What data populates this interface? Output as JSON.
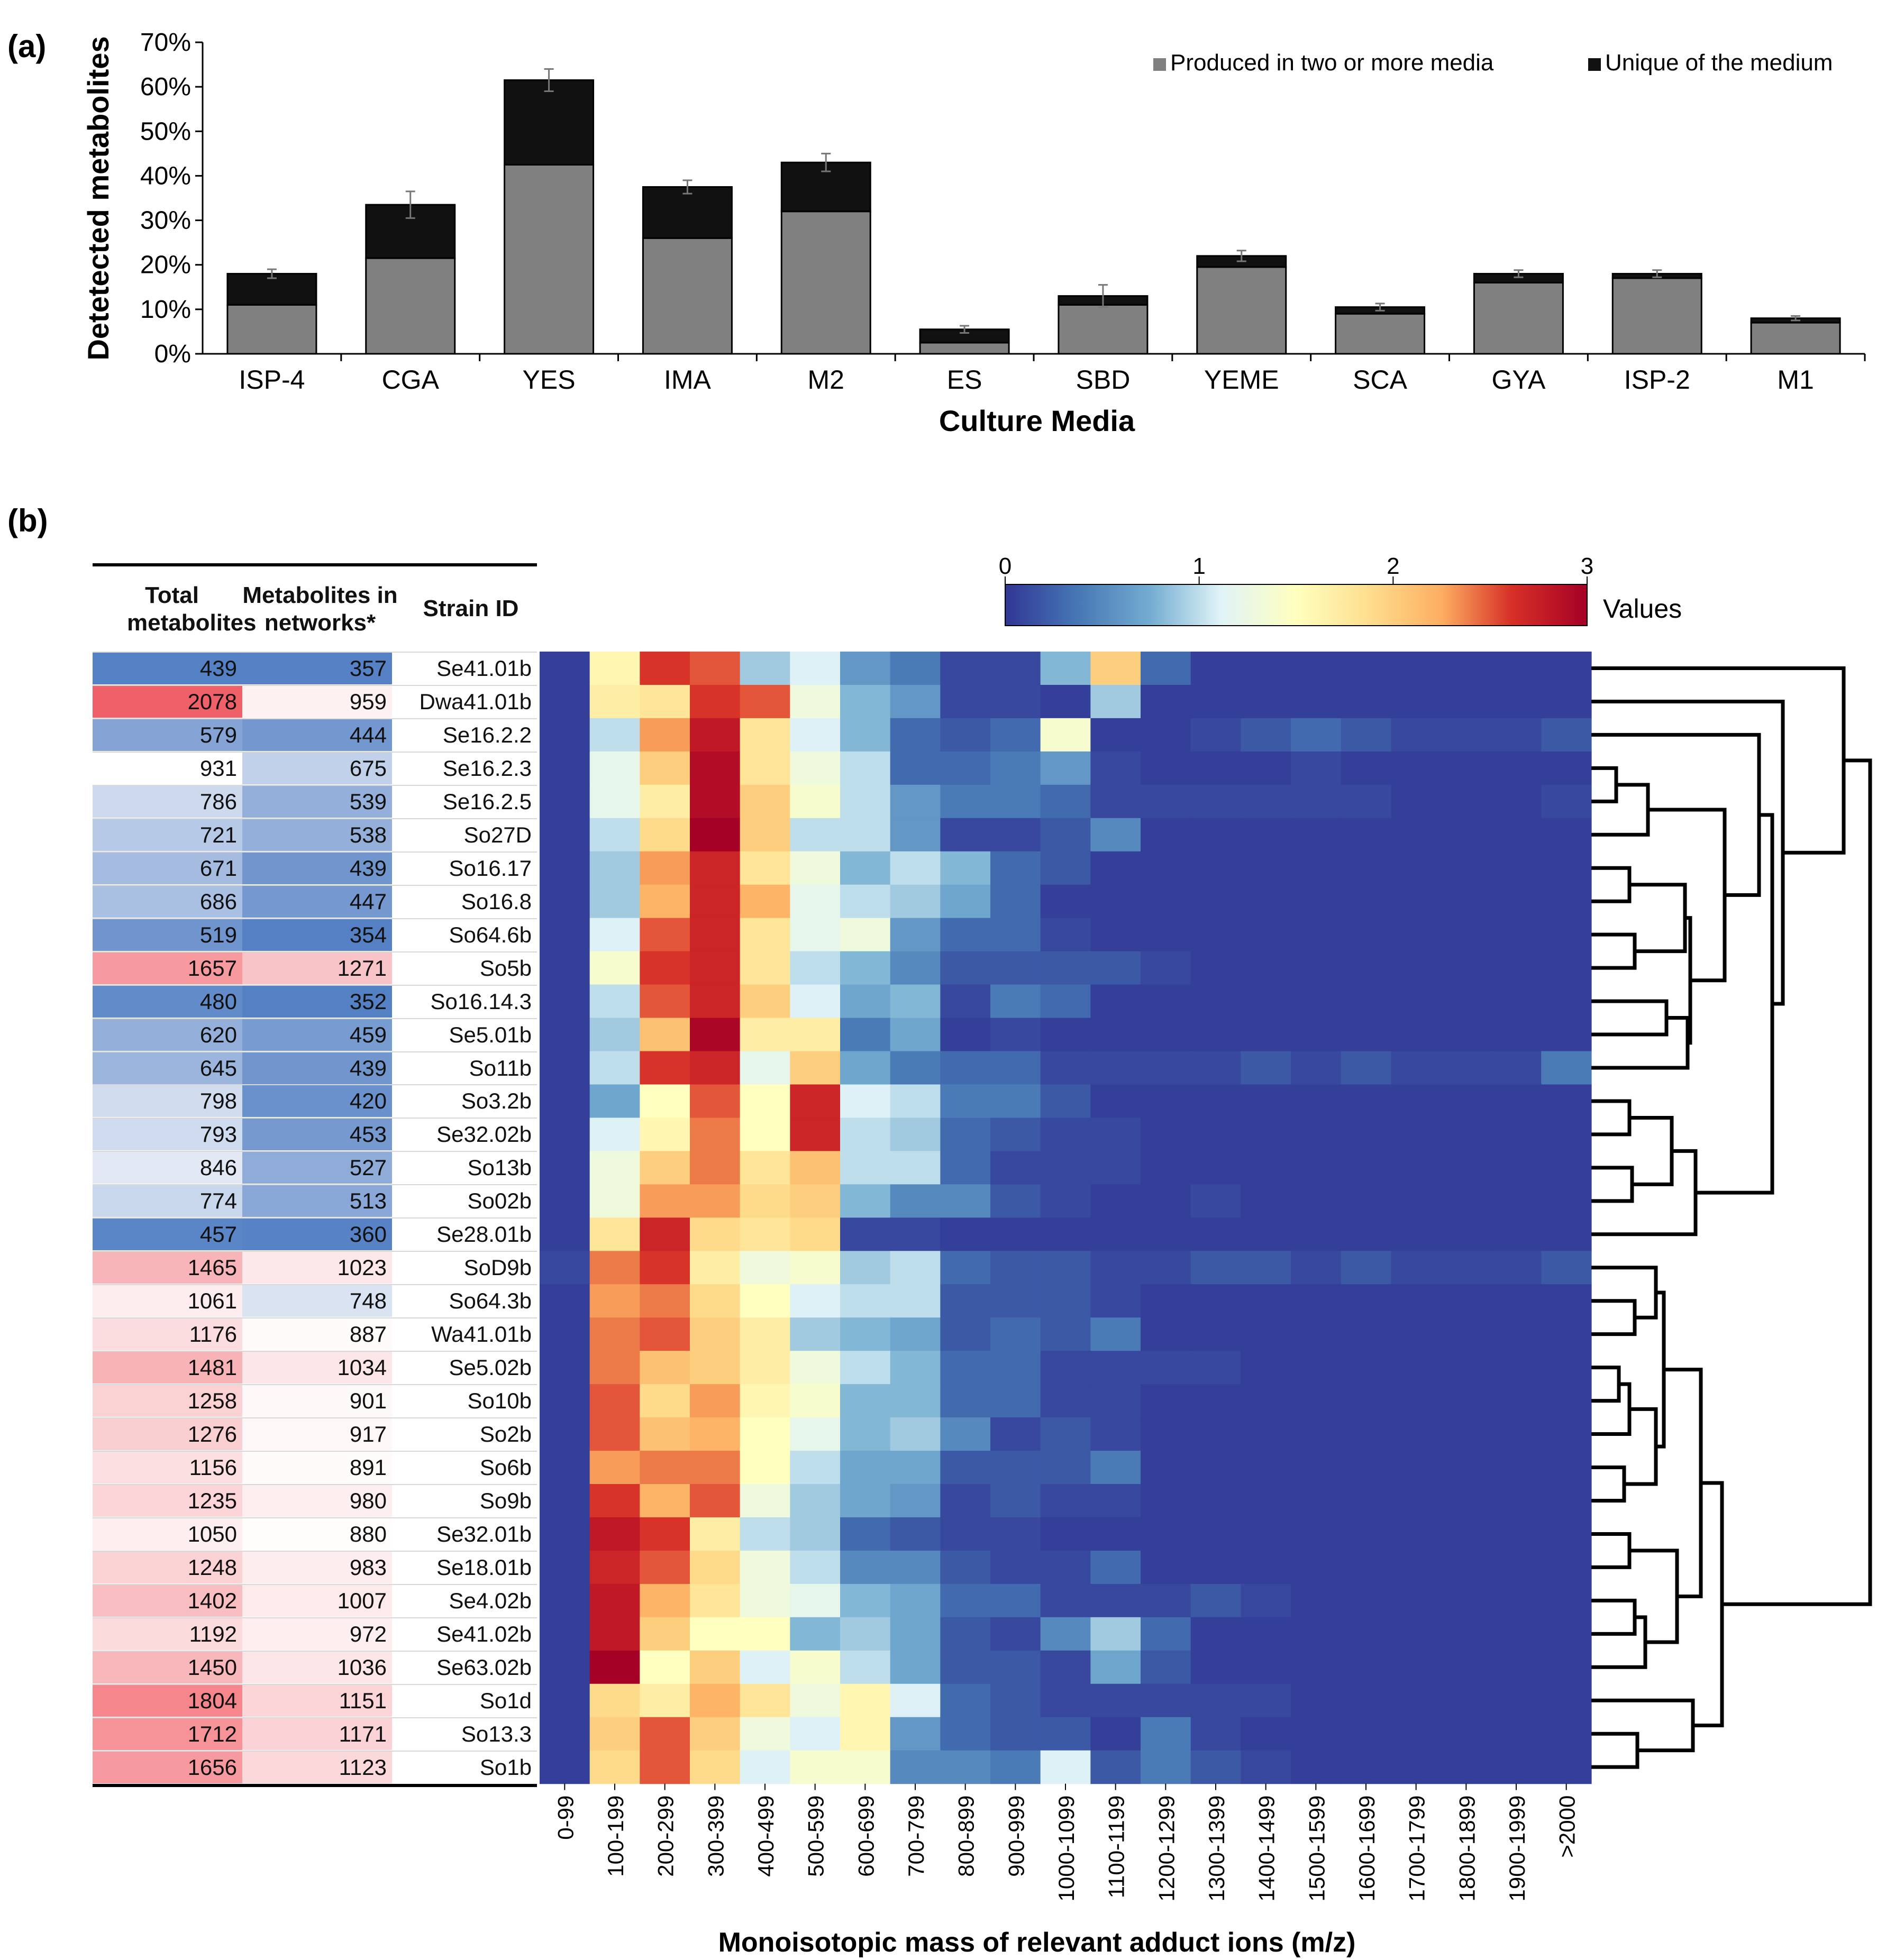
{
  "panel_a_label": "(a)",
  "panel_b_label": "(b)",
  "colors": {
    "produced": "#808080",
    "unique": "#111111",
    "heatmap_low": "#313695",
    "heatmap_high": "#a50026"
  },
  "chart_data": [
    {
      "type": "bar",
      "stacked": true,
      "categories": [
        "ISP-4",
        "CGA",
        "YES",
        "IMA",
        "M2",
        "ES",
        "SBD",
        "YEME",
        "SCA",
        "GYA",
        "ISP-2",
        "M1"
      ],
      "series": [
        {
          "name": "Produced in two or more media",
          "values": [
            11,
            21.5,
            42.5,
            26,
            32,
            2.5,
            11,
            19.5,
            9,
            16,
            17,
            7
          ]
        },
        {
          "name": "Unique of the medium",
          "values": [
            7,
            12,
            19,
            11.5,
            11,
            3,
            2,
            2.5,
            1.5,
            2,
            1,
            1
          ]
        }
      ],
      "error_bars": [
        1,
        3,
        2.5,
        1.5,
        2,
        0.8,
        2.5,
        1.2,
        0.8,
        0.8,
        0.8,
        0.5
      ],
      "xlabel": "Culture Media",
      "ylabel": "Detetected metabolites",
      "ylim": [
        0,
        70
      ],
      "yticks": [
        "0%",
        "10%",
        "20%",
        "30%",
        "40%",
        "50%",
        "60%",
        "70%"
      ],
      "legend_placement": "top-right",
      "grid": false
    },
    {
      "type": "heatmap",
      "xlabel": "Monoisotopic mass of relevant adduct ions (m/z)",
      "x": [
        "0-99",
        "100-199",
        "200-299",
        "300-399",
        "400-499",
        "500-599",
        "600-699",
        "700-799",
        "800-899",
        "900-999",
        "1000-1099",
        "1100-1199",
        "1200-1299",
        "1300-1399",
        "1400-1499",
        "1500-1599",
        "1600-1699",
        "1700-1799",
        "1800-1899",
        "1900-1999",
        ">2000"
      ],
      "colorbar": {
        "label": "Values",
        "range": [
          0,
          3
        ],
        "ticks": [
          "0",
          "1",
          "2",
          "3"
        ]
      },
      "table_headers": {
        "total": "Total metabolites",
        "networks": "Metabolites in networks*",
        "strain": "Strain ID"
      },
      "rows": [
        {
          "strain": "Se41.01b",
          "total": 439,
          "networks": 357,
          "values": [
            0.05,
            1.6,
            2.6,
            2.5,
            0.9,
            1.1,
            0.6,
            0.4,
            0.1,
            0.1,
            0.8,
            2.0,
            0.3,
            0.05,
            0.05,
            0.05,
            0.05,
            0.05,
            0.05,
            0.05,
            0.05
          ]
        },
        {
          "strain": "Dwa41.01b",
          "total": 2078,
          "networks": 959,
          "values": [
            0.05,
            1.7,
            1.8,
            2.6,
            2.5,
            1.3,
            0.8,
            0.6,
            0.1,
            0.1,
            0.05,
            0.9,
            0.05,
            0.05,
            0.05,
            0.05,
            0.05,
            0.05,
            0.05,
            0.05,
            0.05
          ]
        },
        {
          "strain": "Se16.2.2",
          "total": 579,
          "networks": 444,
          "values": [
            0.05,
            1.0,
            2.3,
            2.8,
            1.8,
            1.1,
            0.8,
            0.3,
            0.2,
            0.3,
            1.4,
            0.05,
            0.05,
            0.1,
            0.2,
            0.3,
            0.2,
            0.1,
            0.1,
            0.1,
            0.2
          ]
        },
        {
          "strain": "Se16.2.3",
          "total": 931,
          "networks": 675,
          "values": [
            0.05,
            1.2,
            2.0,
            2.9,
            1.8,
            1.3,
            1.0,
            0.3,
            0.3,
            0.4,
            0.6,
            0.1,
            0.05,
            0.05,
            0.05,
            0.1,
            0.05,
            0.05,
            0.05,
            0.05,
            0.05
          ]
        },
        {
          "strain": "Se16.2.5",
          "total": 786,
          "networks": 539,
          "values": [
            0.05,
            1.2,
            1.7,
            2.9,
            2.0,
            1.4,
            1.0,
            0.6,
            0.4,
            0.4,
            0.3,
            0.1,
            0.1,
            0.1,
            0.1,
            0.1,
            0.1,
            0.05,
            0.05,
            0.05,
            0.1
          ]
        },
        {
          "strain": "So27D",
          "total": 721,
          "networks": 538,
          "values": [
            0.05,
            1.0,
            1.9,
            3.0,
            2.0,
            1.0,
            1.0,
            0.6,
            0.1,
            0.1,
            0.2,
            0.5,
            0.05,
            0.05,
            0.05,
            0.05,
            0.05,
            0.05,
            0.05,
            0.05,
            0.05
          ]
        },
        {
          "strain": "So16.17",
          "total": 671,
          "networks": 439,
          "values": [
            0.05,
            0.9,
            2.3,
            2.7,
            1.8,
            1.3,
            0.8,
            1.0,
            0.8,
            0.3,
            0.2,
            0.05,
            0.05,
            0.05,
            0.05,
            0.05,
            0.05,
            0.05,
            0.05,
            0.05,
            0.05
          ]
        },
        {
          "strain": "So16.8",
          "total": 686,
          "networks": 447,
          "values": [
            0.05,
            0.9,
            2.2,
            2.7,
            2.2,
            1.2,
            1.0,
            0.9,
            0.7,
            0.3,
            0.05,
            0.05,
            0.05,
            0.05,
            0.05,
            0.05,
            0.05,
            0.05,
            0.05,
            0.05,
            0.05
          ]
        },
        {
          "strain": "So64.6b",
          "total": 519,
          "networks": 354,
          "values": [
            0.05,
            1.1,
            2.5,
            2.7,
            1.8,
            1.2,
            1.3,
            0.6,
            0.3,
            0.3,
            0.1,
            0.05,
            0.05,
            0.05,
            0.05,
            0.05,
            0.05,
            0.05,
            0.05,
            0.05,
            0.05
          ]
        },
        {
          "strain": "So5b",
          "total": 1657,
          "networks": 1271,
          "values": [
            0.05,
            1.4,
            2.6,
            2.7,
            1.8,
            1.0,
            0.8,
            0.5,
            0.2,
            0.2,
            0.2,
            0.2,
            0.1,
            0.05,
            0.05,
            0.05,
            0.05,
            0.05,
            0.05,
            0.05,
            0.05
          ]
        },
        {
          "strain": "So16.14.3",
          "total": 480,
          "networks": 352,
          "values": [
            0.05,
            1.0,
            2.5,
            2.7,
            2.0,
            1.1,
            0.7,
            0.8,
            0.1,
            0.4,
            0.3,
            0.05,
            0.05,
            0.05,
            0.05,
            0.05,
            0.05,
            0.05,
            0.05,
            0.05,
            0.05
          ]
        },
        {
          "strain": "Se5.01b",
          "total": 620,
          "networks": 459,
          "values": [
            0.05,
            0.9,
            2.1,
            2.95,
            1.7,
            1.7,
            0.4,
            0.7,
            0.05,
            0.1,
            0.05,
            0.05,
            0.05,
            0.05,
            0.05,
            0.05,
            0.05,
            0.05,
            0.05,
            0.05,
            0.05
          ]
        },
        {
          "strain": "So11b",
          "total": 645,
          "networks": 439,
          "values": [
            0.05,
            1.0,
            2.6,
            2.7,
            1.2,
            2.0,
            0.7,
            0.4,
            0.3,
            0.3,
            0.1,
            0.1,
            0.1,
            0.1,
            0.2,
            0.1,
            0.2,
            0.1,
            0.1,
            0.1,
            0.4
          ]
        },
        {
          "strain": "So3.2b",
          "total": 798,
          "networks": 420,
          "values": [
            0.05,
            0.7,
            1.5,
            2.5,
            1.5,
            2.7,
            1.1,
            1.0,
            0.4,
            0.4,
            0.2,
            0.05,
            0.05,
            0.05,
            0.05,
            0.05,
            0.05,
            0.05,
            0.05,
            0.05,
            0.05
          ]
        },
        {
          "strain": "Se32.02b",
          "total": 793,
          "networks": 453,
          "values": [
            0.05,
            1.1,
            1.6,
            2.4,
            1.5,
            2.7,
            1.0,
            0.9,
            0.3,
            0.2,
            0.1,
            0.1,
            0.05,
            0.05,
            0.05,
            0.05,
            0.05,
            0.05,
            0.05,
            0.05,
            0.05
          ]
        },
        {
          "strain": "So13b",
          "total": 846,
          "networks": 527,
          "values": [
            0.05,
            1.3,
            2.0,
            2.4,
            1.8,
            2.1,
            1.0,
            1.0,
            0.3,
            0.1,
            0.1,
            0.1,
            0.05,
            0.05,
            0.05,
            0.05,
            0.05,
            0.05,
            0.05,
            0.05,
            0.05
          ]
        },
        {
          "strain": "So02b",
          "total": 774,
          "networks": 513,
          "values": [
            0.05,
            1.3,
            2.3,
            2.3,
            1.9,
            2.0,
            0.8,
            0.5,
            0.5,
            0.2,
            0.1,
            0.05,
            0.05,
            0.1,
            0.05,
            0.05,
            0.05,
            0.05,
            0.05,
            0.05,
            0.05
          ]
        },
        {
          "strain": "Se28.01b",
          "total": 457,
          "networks": 360,
          "values": [
            0.05,
            1.8,
            2.7,
            1.9,
            1.8,
            1.9,
            0.1,
            0.1,
            0.05,
            0.05,
            0.05,
            0.05,
            0.05,
            0.05,
            0.05,
            0.05,
            0.05,
            0.05,
            0.05,
            0.05,
            0.05
          ]
        },
        {
          "strain": "SoD9b",
          "total": 1465,
          "networks": 1023,
          "values": [
            0.1,
            2.4,
            2.6,
            1.7,
            1.3,
            1.4,
            0.9,
            1.0,
            0.3,
            0.2,
            0.2,
            0.1,
            0.1,
            0.2,
            0.2,
            0.1,
            0.2,
            0.1,
            0.1,
            0.1,
            0.2
          ]
        },
        {
          "strain": "So64.3b",
          "total": 1061,
          "networks": 748,
          "values": [
            0.05,
            2.3,
            2.4,
            1.9,
            1.5,
            1.1,
            1.0,
            1.0,
            0.2,
            0.2,
            0.2,
            0.1,
            0.05,
            0.05,
            0.05,
            0.05,
            0.05,
            0.05,
            0.05,
            0.05,
            0.05
          ]
        },
        {
          "strain": "Wa41.01b",
          "total": 1176,
          "networks": 887,
          "values": [
            0.05,
            2.4,
            2.5,
            2.0,
            1.7,
            0.9,
            0.8,
            0.7,
            0.2,
            0.3,
            0.2,
            0.4,
            0.05,
            0.05,
            0.05,
            0.05,
            0.05,
            0.05,
            0.05,
            0.05,
            0.05
          ]
        },
        {
          "strain": "Se5.02b",
          "total": 1481,
          "networks": 1034,
          "values": [
            0.05,
            2.4,
            2.1,
            2.0,
            1.7,
            1.3,
            1.0,
            0.8,
            0.3,
            0.3,
            0.1,
            0.1,
            0.1,
            0.1,
            0.05,
            0.05,
            0.05,
            0.05,
            0.05,
            0.05,
            0.05
          ]
        },
        {
          "strain": "So10b",
          "total": 1258,
          "networks": 901,
          "values": [
            0.05,
            2.5,
            1.9,
            2.3,
            1.6,
            1.4,
            0.8,
            0.8,
            0.3,
            0.3,
            0.1,
            0.1,
            0.05,
            0.05,
            0.05,
            0.05,
            0.05,
            0.05,
            0.05,
            0.05,
            0.05
          ]
        },
        {
          "strain": "So2b",
          "total": 1276,
          "networks": 917,
          "values": [
            0.05,
            2.5,
            2.1,
            2.2,
            1.5,
            1.2,
            0.8,
            0.9,
            0.5,
            0.1,
            0.2,
            0.1,
            0.05,
            0.05,
            0.05,
            0.05,
            0.05,
            0.05,
            0.05,
            0.05,
            0.05
          ]
        },
        {
          "strain": "So6b",
          "total": 1156,
          "networks": 891,
          "values": [
            0.05,
            2.3,
            2.4,
            2.4,
            1.5,
            1.0,
            0.7,
            0.7,
            0.2,
            0.2,
            0.2,
            0.4,
            0.05,
            0.05,
            0.05,
            0.05,
            0.05,
            0.05,
            0.05,
            0.05,
            0.05
          ]
        },
        {
          "strain": "So9b",
          "total": 1235,
          "networks": 980,
          "values": [
            0.05,
            2.6,
            2.2,
            2.5,
            1.3,
            0.9,
            0.7,
            0.6,
            0.1,
            0.2,
            0.1,
            0.1,
            0.05,
            0.05,
            0.05,
            0.05,
            0.05,
            0.05,
            0.05,
            0.05,
            0.05
          ]
        },
        {
          "strain": "Se32.01b",
          "total": 1050,
          "networks": 880,
          "values": [
            0.05,
            2.8,
            2.6,
            1.7,
            1.0,
            0.9,
            0.3,
            0.2,
            0.1,
            0.1,
            0.05,
            0.05,
            0.05,
            0.05,
            0.05,
            0.05,
            0.05,
            0.05,
            0.05,
            0.05,
            0.05
          ]
        },
        {
          "strain": "Se18.01b",
          "total": 1248,
          "networks": 983,
          "values": [
            0.05,
            2.7,
            2.5,
            1.9,
            1.3,
            1.0,
            0.5,
            0.5,
            0.2,
            0.1,
            0.1,
            0.3,
            0.05,
            0.05,
            0.05,
            0.05,
            0.05,
            0.05,
            0.05,
            0.05,
            0.05
          ]
        },
        {
          "strain": "Se4.02b",
          "total": 1402,
          "networks": 1007,
          "values": [
            0.05,
            2.8,
            2.2,
            1.8,
            1.3,
            1.2,
            0.8,
            0.7,
            0.3,
            0.3,
            0.1,
            0.1,
            0.1,
            0.2,
            0.1,
            0.05,
            0.05,
            0.05,
            0.05,
            0.05,
            0.05
          ]
        },
        {
          "strain": "Se41.02b",
          "total": 1192,
          "networks": 972,
          "values": [
            0.05,
            2.8,
            2.0,
            1.5,
            1.5,
            0.8,
            0.9,
            0.7,
            0.2,
            0.1,
            0.5,
            0.9,
            0.3,
            0.05,
            0.05,
            0.05,
            0.05,
            0.05,
            0.05,
            0.05,
            0.05
          ]
        },
        {
          "strain": "Se63.02b",
          "total": 1450,
          "networks": 1036,
          "values": [
            0.05,
            3.0,
            1.5,
            2.0,
            1.1,
            1.4,
            1.0,
            0.7,
            0.2,
            0.2,
            0.1,
            0.7,
            0.2,
            0.05,
            0.05,
            0.05,
            0.05,
            0.05,
            0.05,
            0.05,
            0.05
          ]
        },
        {
          "strain": "So1d",
          "total": 1804,
          "networks": 1151,
          "values": [
            0.05,
            1.9,
            1.7,
            2.2,
            1.8,
            1.3,
            1.6,
            1.1,
            0.3,
            0.2,
            0.1,
            0.1,
            0.1,
            0.1,
            0.1,
            0.05,
            0.05,
            0.05,
            0.05,
            0.05,
            0.05
          ]
        },
        {
          "strain": "So13.3",
          "total": 1712,
          "networks": 1171,
          "values": [
            0.05,
            2.0,
            2.5,
            2.0,
            1.3,
            1.1,
            1.6,
            0.6,
            0.3,
            0.2,
            0.2,
            0.05,
            0.4,
            0.1,
            0.05,
            0.05,
            0.05,
            0.05,
            0.05,
            0.05,
            0.05
          ]
        },
        {
          "strain": "So1b",
          "total": 1656,
          "networks": 1123,
          "values": [
            0.05,
            1.9,
            2.5,
            1.9,
            1.1,
            1.4,
            1.4,
            0.5,
            0.5,
            0.4,
            1.1,
            0.2,
            0.4,
            0.2,
            0.1,
            0.05,
            0.05,
            0.05,
            0.05,
            0.05,
            0.05
          ]
        }
      ]
    }
  ]
}
